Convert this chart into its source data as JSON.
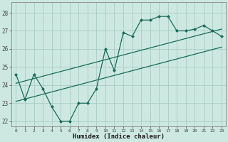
{
  "xlabel": "Humidex (Indice chaleur)",
  "bg_color": "#cce8e0",
  "line_color": "#1a6b5a",
  "grid_color": "#aaccc4",
  "xlim": [
    -0.5,
    23.5
  ],
  "ylim": [
    21.7,
    28.6
  ],
  "yticks": [
    22,
    23,
    24,
    25,
    26,
    27,
    28
  ],
  "xticks": [
    0,
    1,
    2,
    3,
    4,
    5,
    6,
    7,
    8,
    9,
    10,
    11,
    12,
    13,
    14,
    15,
    16,
    17,
    18,
    19,
    20,
    21,
    22,
    23
  ],
  "zigzag_x": [
    0,
    1,
    2,
    3,
    4,
    5,
    6,
    7,
    8,
    9,
    10,
    11,
    12,
    13,
    14,
    15,
    16,
    17,
    18,
    19,
    20,
    21,
    22,
    23
  ],
  "zigzag_y": [
    24.6,
    23.2,
    24.6,
    23.8,
    22.8,
    22.0,
    22.0,
    23.0,
    23.0,
    23.8,
    26.0,
    24.8,
    26.9,
    26.7,
    27.6,
    27.6,
    27.8,
    27.8,
    27.0,
    27.0,
    27.1,
    27.3,
    27.0,
    26.7
  ],
  "line1_x": [
    0,
    23
  ],
  "line1_y": [
    24.1,
    27.1
  ],
  "line2_x": [
    0,
    23
  ],
  "line2_y": [
    23.1,
    26.1
  ]
}
